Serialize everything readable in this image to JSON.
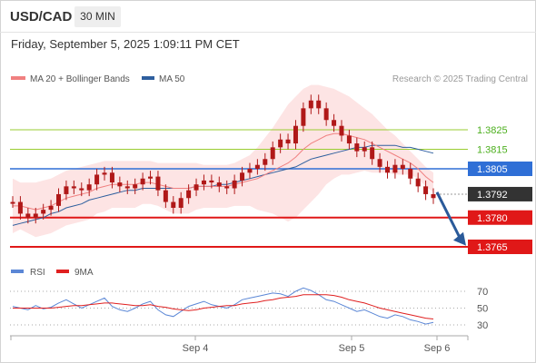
{
  "header": {
    "symbol": "USD/CAD",
    "timeframe": "30 MIN",
    "datetime": "Friday, September 5, 2025 1:09:11 PM CET"
  },
  "legend": {
    "ma20_label": "MA 20 + Bollinger Bands",
    "ma50_label": "MA 50",
    "ma20_color": "#f08080",
    "ma50_color": "#2e5f9e",
    "credit": "Research © 2025 Trading Central"
  },
  "rsi_legend": {
    "rsi_label": "RSI",
    "ma9_label": "9MA",
    "rsi_color": "#5b87d6",
    "ma9_color": "#e02020"
  },
  "chart_data": [
    {
      "type": "candlestick",
      "price_range": [
        1.3755,
        1.3855
      ],
      "x_ticks": [
        "Sep 4",
        "Sep 5",
        "Sep 6"
      ],
      "levels": [
        {
          "value": 1.3825,
          "label": "1.3825",
          "style": "thin",
          "color": "#9acd32",
          "text_color": "#4caf1e"
        },
        {
          "value": 1.3815,
          "label": "1.3815",
          "style": "thin",
          "color": "#9acd32",
          "text_color": "#4caf1e"
        },
        {
          "value": 1.3805,
          "label": "1.3805",
          "style": "box",
          "color": "#2f6fd6"
        },
        {
          "value": 1.3792,
          "label": "1.3792",
          "style": "current",
          "color": "#333333"
        },
        {
          "value": 1.378,
          "label": "1.3780",
          "style": "box",
          "color": "#e01818"
        },
        {
          "value": 1.3765,
          "label": "1.3765",
          "style": "box",
          "color": "#e01818"
        }
      ],
      "forecast": {
        "from": 1.3793,
        "to": 1.3767,
        "direction": "down",
        "color": "#2a5a9a"
      },
      "closes": [
        1.3788,
        1.3782,
        1.378,
        1.3782,
        1.3784,
        1.3786,
        1.3792,
        1.3796,
        1.3795,
        1.3794,
        1.3797,
        1.3802,
        1.3803,
        1.3798,
        1.3796,
        1.3795,
        1.3797,
        1.38,
        1.3801,
        1.3794,
        1.3788,
        1.3785,
        1.379,
        1.3794,
        1.3797,
        1.3799,
        1.3798,
        1.3796,
        1.3795,
        1.3799,
        1.3803,
        1.3805,
        1.3807,
        1.381,
        1.3816,
        1.382,
        1.3818,
        1.3827,
        1.3836,
        1.384,
        1.3836,
        1.383,
        1.3827,
        1.3822,
        1.3818,
        1.3814,
        1.3816,
        1.381,
        1.3806,
        1.3803,
        1.3807,
        1.3805,
        1.38,
        1.3796,
        1.3792,
        1.379
      ],
      "ma20": [
        1.3786,
        1.3786,
        1.3785,
        1.3784,
        1.3785,
        1.3786,
        1.3788,
        1.379,
        1.3791,
        1.3792,
        1.3793,
        1.3795,
        1.3796,
        1.3797,
        1.3797,
        1.3797,
        1.3797,
        1.3798,
        1.3798,
        1.3797,
        1.3796,
        1.3795,
        1.3795,
        1.3795,
        1.3796,
        1.3796,
        1.3796,
        1.3796,
        1.3796,
        1.3797,
        1.3798,
        1.3799,
        1.38,
        1.3802,
        1.3804,
        1.3806,
        1.3808,
        1.3811,
        1.3815,
        1.3818,
        1.382,
        1.3822,
        1.3823,
        1.3823,
        1.3822,
        1.3821,
        1.382,
        1.3818,
        1.3816,
        1.3814,
        1.3812,
        1.381,
        1.3808,
        1.3805,
        1.3801,
        1.3798
      ],
      "ma50": [
        1.3776,
        1.3777,
        1.3778,
        1.3779,
        1.378,
        1.3782,
        1.3783,
        1.3785,
        1.3786,
        1.3787,
        1.3789,
        1.379,
        1.3791,
        1.3792,
        1.3793,
        1.3794,
        1.3794,
        1.3795,
        1.3795,
        1.3795,
        1.3795,
        1.3795,
        1.3795,
        1.3795,
        1.3796,
        1.3796,
        1.3796,
        1.3797,
        1.3797,
        1.3798,
        1.3799,
        1.38,
        1.3801,
        1.3802,
        1.3803,
        1.3804,
        1.3805,
        1.3806,
        1.3808,
        1.381,
        1.3811,
        1.3812,
        1.3813,
        1.3814,
        1.3815,
        1.3816,
        1.3816,
        1.3817,
        1.3817,
        1.3817,
        1.3817,
        1.3816,
        1.3816,
        1.3815,
        1.3814,
        1.3813
      ],
      "bb_upper": [
        1.38,
        1.3798,
        1.3798,
        1.3798,
        1.3799,
        1.38,
        1.3802,
        1.3804,
        1.3805,
        1.3806,
        1.3807,
        1.3808,
        1.3809,
        1.3809,
        1.3809,
        1.3809,
        1.3809,
        1.3809,
        1.3809,
        1.3808,
        1.3808,
        1.3808,
        1.3808,
        1.3808,
        1.3808,
        1.3807,
        1.3807,
        1.3807,
        1.3807,
        1.3808,
        1.381,
        1.3812,
        1.3816,
        1.3821,
        1.3826,
        1.3832,
        1.3838,
        1.3842,
        1.3846,
        1.3848,
        1.3848,
        1.3847,
        1.3846,
        1.3844,
        1.3842,
        1.3839,
        1.3836,
        1.3833,
        1.3829,
        1.3825,
        1.3822,
        1.3818,
        1.3814,
        1.381,
        1.3806,
        1.3803
      ],
      "bb_lower": [
        1.3772,
        1.3774,
        1.3772,
        1.377,
        1.3771,
        1.3772,
        1.3774,
        1.3776,
        1.3777,
        1.3778,
        1.3779,
        1.3782,
        1.3783,
        1.3785,
        1.3785,
        1.3785,
        1.3785,
        1.3787,
        1.3787,
        1.3786,
        1.3784,
        1.3782,
        1.3782,
        1.3782,
        1.3784,
        1.3785,
        1.3785,
        1.3785,
        1.3785,
        1.3786,
        1.3786,
        1.3786,
        1.3784,
        1.3783,
        1.3782,
        1.378,
        1.3778,
        1.378,
        1.3784,
        1.3788,
        1.3792,
        1.3797,
        1.38,
        1.3802,
        1.3802,
        1.3803,
        1.3804,
        1.3803,
        1.3803,
        1.3803,
        1.3802,
        1.3802,
        1.3802,
        1.38,
        1.3796,
        1.3793
      ]
    },
    {
      "type": "line",
      "y_ticks": [
        70,
        50,
        30
      ],
      "ylim": [
        25,
        75
      ],
      "series": [
        {
          "name": "RSI",
          "values": [
            52,
            50,
            48,
            53,
            49,
            51,
            56,
            60,
            55,
            50,
            54,
            58,
            62,
            52,
            48,
            46,
            50,
            55,
            58,
            48,
            42,
            40,
            46,
            52,
            55,
            58,
            54,
            52,
            50,
            54,
            60,
            62,
            64,
            66,
            68,
            67,
            64,
            70,
            74,
            71,
            66,
            60,
            58,
            54,
            50,
            46,
            48,
            44,
            40,
            38,
            42,
            40,
            36,
            34,
            31,
            33
          ]
        },
        {
          "name": "9MA",
          "values": [
            50,
            50,
            50,
            50,
            50,
            50,
            51,
            52,
            53,
            53,
            54,
            55,
            56,
            56,
            55,
            54,
            53,
            53,
            54,
            52,
            51,
            49,
            48,
            47,
            48,
            50,
            51,
            52,
            53,
            53,
            55,
            56,
            57,
            59,
            60,
            62,
            63,
            64,
            66,
            66,
            66,
            66,
            65,
            63,
            60,
            58,
            56,
            53,
            50,
            48,
            46,
            44,
            42,
            40,
            38,
            37
          ]
        }
      ]
    }
  ]
}
